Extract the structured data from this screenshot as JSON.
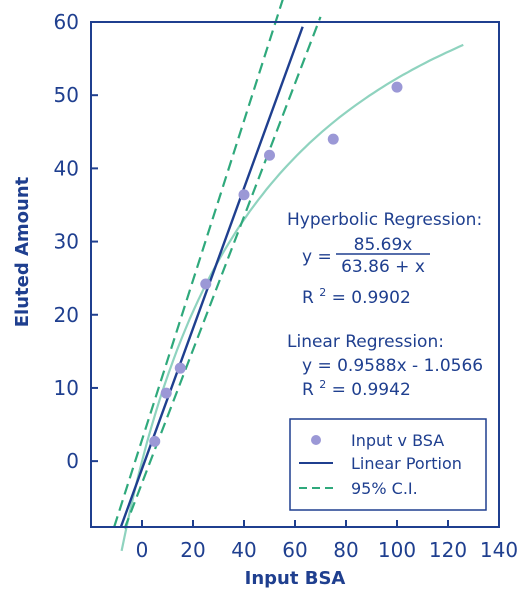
{
  "chart_data": {
    "type": "scatter",
    "title": "",
    "xlabel": "Input BSA",
    "ylabel": "Eluted Amount",
    "xlim": [
      -20,
      140
    ],
    "ylim": [
      -9,
      60
    ],
    "x_ticks": [
      0,
      20,
      40,
      60,
      80,
      100,
      120,
      140
    ],
    "x_tick_labels": [
      "0",
      "20",
      "40",
      "60",
      "80",
      "100",
      "120",
      "140"
    ],
    "y_ticks": [
      0,
      10,
      20,
      30,
      40,
      50,
      60
    ],
    "y_tick_labels": [
      "0",
      "10",
      "20",
      "30",
      "40",
      "50",
      "60"
    ],
    "grid": false,
    "legend_position": "bottom-right",
    "colors": {
      "points": "#9b98d6",
      "linear": "#1f3f8f",
      "ci": "#2fa97c",
      "hyperbolic": "#8fd3bf",
      "text": "#1f3f8f"
    },
    "series": [
      {
        "name": "Input v BSA",
        "kind": "scatter",
        "x": [
          5,
          9.5,
          15,
          25,
          40,
          50,
          75,
          100
        ],
        "y": [
          2.7,
          9.3,
          12.7,
          24.2,
          36.4,
          41.8,
          44.0,
          51.1
        ]
      },
      {
        "name": "Linear Portion",
        "kind": "line",
        "slope": 0.9588,
        "intercept": -1.0566,
        "x_range": [
          -8.3,
          63
        ]
      },
      {
        "name": "95% C.I.",
        "kind": "ci",
        "bounds": [
          {
            "x_range": [
              -6.8,
              70
            ],
            "slope": 0.91,
            "intercept": -3
          },
          {
            "x_range": [
              -10.9,
              58
            ],
            "slope": 1.09,
            "intercept": 2.9
          }
        ]
      },
      {
        "name": "",
        "kind": "hyperbolic",
        "vmax": 85.69,
        "km": 63.86,
        "x_range": [
          -8,
          126
        ]
      }
    ],
    "annotations": {
      "hyperbolic_title": "Hyperbolic Regression:",
      "hyperbolic_y": "y =",
      "hyperbolic_numerator": "85.69x",
      "hyperbolic_denominator": "63.86 + x",
      "hyperbolic_r2_prefix": "R",
      "hyperbolic_r2_exp": "2",
      "hyperbolic_r2_value": " = 0.9902",
      "linear_title": "Linear Regression:",
      "linear_eq": "y = 0.9588x - 1.0566",
      "linear_r2_prefix": "R",
      "linear_r2_exp": "2",
      "linear_r2_value": " = 0.9942"
    }
  }
}
